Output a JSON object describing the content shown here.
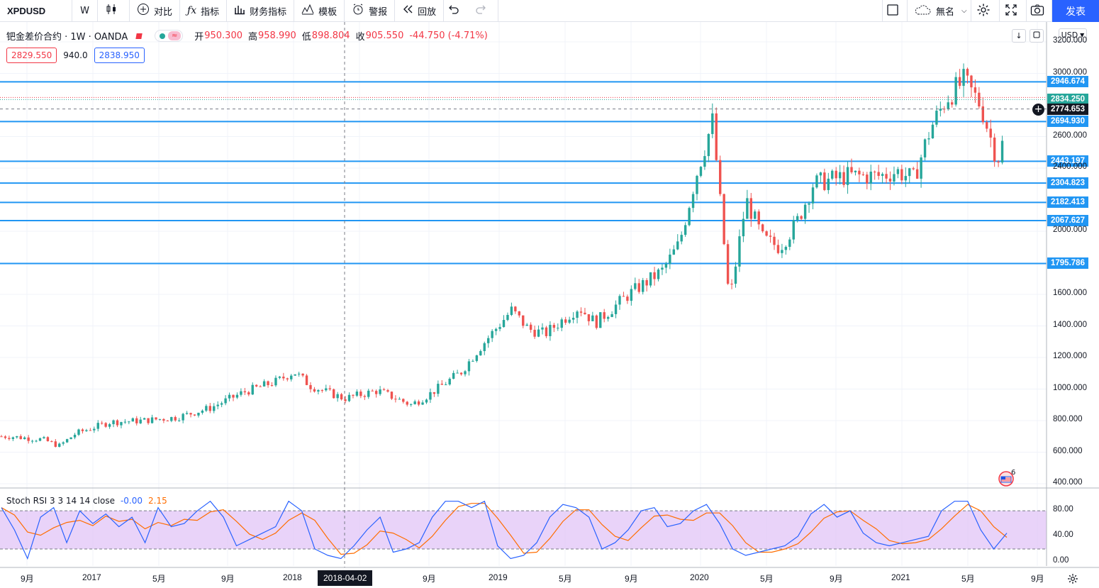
{
  "toolbar": {
    "symbol": "XPDUSD",
    "interval": "W",
    "compare": "对比",
    "indicators": "指标",
    "financials": "财务指标",
    "templates": "模板",
    "alert": "警报",
    "replay": "回放",
    "layout_name": "無名",
    "publish": "发表"
  },
  "legend": {
    "title": "钯金差价合约 · 1W · OANDA",
    "open_label": "开",
    "open": "950.300",
    "high_label": "高",
    "high": "958.990",
    "low_label": "低",
    "low": "898.804",
    "close_label": "收",
    "close": "905.550",
    "change": "-44.750 (-4.71%)"
  },
  "quotes": {
    "bid": "2829.550",
    "spread": "940.0",
    "ask": "2838.950"
  },
  "currency": "USD",
  "indicator": {
    "title": "Stoch RSI 3 3 14 14 close",
    "k_value": "-0.00",
    "d_value": "2.15"
  },
  "colors": {
    "up": "#26a69a",
    "down": "#ef5350",
    "level_line": "#2196f3",
    "stoch_k": "#2962ff",
    "stoch_d": "#ff6d00",
    "stoch_band": "#e1c4f7"
  },
  "icons": [
    "candles-icon",
    "add-compare-icon",
    "fx-icon",
    "financials-icon",
    "templates-icon",
    "alert-icon",
    "replay-icon",
    "undo-icon",
    "redo-icon",
    "layout-icon",
    "cloud-icon",
    "settings-icon",
    "fullscreen-icon",
    "camera-icon",
    "timezone-gear-icon",
    "flag-icon"
  ],
  "chart_data": {
    "type": "candlestick",
    "price_axis": {
      "range": [
        380,
        3240
      ],
      "ticks": [
        "3200.000",
        "3000.000",
        "2600.000",
        "2400.000",
        "2000.000",
        "1600.000",
        "1400.000",
        "1200.000",
        "1000.000",
        "800.000",
        "600.000",
        "400.000"
      ]
    },
    "horizontal_levels": [
      "2946.674",
      "2694.930",
      "2443.197",
      "2304.823",
      "2182.413",
      "2067.627",
      "1795.786"
    ],
    "price_tags": [
      {
        "label": "2834.250",
        "kind": "last"
      },
      {
        "label": "2774.653",
        "kind": "crosshair"
      }
    ],
    "time_axis": [
      "9月",
      "2017",
      "5月",
      "9月",
      "2018",
      "5月",
      "9月",
      "2019",
      "5月",
      "9月",
      "2020",
      "5月",
      "9月",
      "2021",
      "5月",
      "9月"
    ],
    "crosshair_date": "2018-04-02",
    "weekly_close_path": [
      [
        "2016-08",
        700
      ],
      [
        "2016-10",
        680
      ],
      [
        "2016-11",
        640
      ],
      [
        "2016-12",
        720
      ],
      [
        "2017-02",
        790
      ],
      [
        "2017-04",
        800
      ],
      [
        "2017-06",
        820
      ],
      [
        "2017-08",
        880
      ],
      [
        "2017-10",
        980
      ],
      [
        "2017-12",
        1050
      ],
      [
        "2018-01",
        1110
      ],
      [
        "2018-02",
        1020
      ],
      [
        "2018-04",
        940
      ],
      [
        "2018-06",
        990
      ],
      [
        "2018-08",
        900
      ],
      [
        "2018-09",
        960
      ],
      [
        "2018-11",
        1110
      ],
      [
        "2018-12",
        1250
      ],
      [
        "2019-02",
        1500
      ],
      [
        "2019-03",
        1380
      ],
      [
        "2019-04",
        1350
      ],
      [
        "2019-06",
        1520
      ],
      [
        "2019-07",
        1420
      ],
      [
        "2019-09",
        1600
      ],
      [
        "2019-11",
        1750
      ],
      [
        "2019-12",
        1920
      ],
      [
        "2020-01",
        2350
      ],
      [
        "2020-02",
        2700
      ],
      [
        "2020-03",
        1550
      ],
      [
        "2020-04",
        2200
      ],
      [
        "2020-05",
        1950
      ],
      [
        "2020-06",
        1900
      ],
      [
        "2020-07",
        2050
      ],
      [
        "2020-08",
        2300
      ],
      [
        "2020-10",
        2350
      ],
      [
        "2020-12",
        2350
      ],
      [
        "2021-01",
        2380
      ],
      [
        "2021-02",
        2330
      ],
      [
        "2021-03",
        2650
      ],
      [
        "2021-04",
        2850
      ],
      [
        "2021-05",
        2950
      ],
      [
        "2021-06",
        2800
      ],
      [
        "2021-07",
        2450
      ],
      [
        "2021-08",
        2800
      ]
    ],
    "stoch_rsi": {
      "range": [
        0,
        100
      ],
      "ticks": [
        "80.00",
        "40.00",
        "0.00"
      ],
      "band": [
        20,
        80
      ],
      "k_path": [
        85,
        50,
        5,
        70,
        85,
        30,
        80,
        60,
        75,
        55,
        70,
        30,
        85,
        55,
        60,
        80,
        95,
        70,
        25,
        35,
        45,
        55,
        95,
        80,
        20,
        10,
        5,
        25,
        50,
        70,
        15,
        20,
        30,
        70,
        95,
        95,
        85,
        95,
        25,
        5,
        10,
        30,
        70,
        90,
        85,
        70,
        20,
        30,
        50,
        80,
        85,
        55,
        60,
        80,
        90,
        60,
        20,
        10,
        15,
        20,
        25,
        40,
        75,
        90,
        70,
        80,
        45,
        30,
        25,
        30,
        35,
        40,
        80,
        95,
        95,
        50,
        20,
        45
      ]
    }
  }
}
